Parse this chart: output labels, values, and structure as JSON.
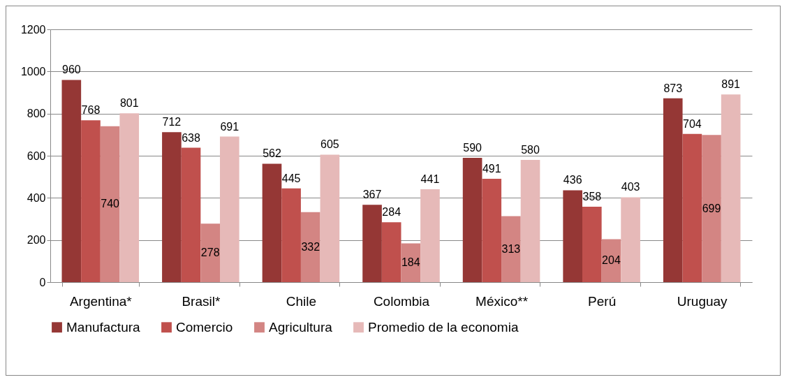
{
  "chart_data": {
    "type": "bar",
    "categories": [
      "Argentina*",
      "Brasil*",
      "Chile",
      "Colombia",
      "México**",
      "Perú",
      "Uruguay"
    ],
    "series": [
      {
        "name": "Manufactura",
        "color": "#953735",
        "values": [
          960,
          712,
          562,
          367,
          590,
          436,
          873
        ]
      },
      {
        "name": "Comercio",
        "color": "#c0504d",
        "values": [
          768,
          638,
          445,
          284,
          491,
          358,
          704
        ]
      },
      {
        "name": "Agricultura",
        "color": "#d38583",
        "values": [
          740,
          278,
          332,
          184,
          313,
          204,
          699
        ]
      },
      {
        "name": "Promedio de la economia",
        "color": "#e6b9b8",
        "values": [
          801,
          691,
          605,
          441,
          580,
          403,
          891
        ]
      }
    ],
    "ylim": [
      0,
      1200
    ],
    "yticks": [
      0,
      200,
      400,
      600,
      800,
      1000,
      1200
    ],
    "grid": "y",
    "legend": "bottom",
    "data_labels": true
  }
}
